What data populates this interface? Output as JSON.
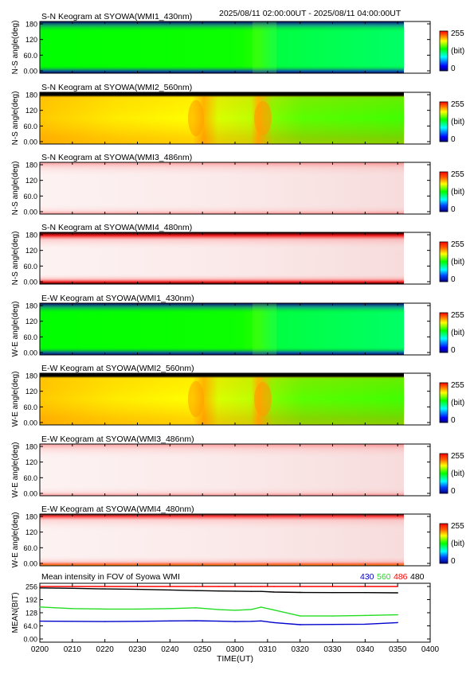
{
  "header": {
    "time_range": "2025/08/11 02:00:00UT - 2025/08/11 04:00:00UT"
  },
  "colorbar": {
    "max_label": "255",
    "min_label": "0",
    "unit_label": "(bit)"
  },
  "keograms": [
    {
      "title": "S-N Keogram at SYOWA(WMI1_430nm)",
      "ylabel": "N-S angle(deg)",
      "colormap": "rainbow",
      "yticks": [
        "180",
        "120",
        "60.0",
        "0.00"
      ]
    },
    {
      "title": "S-N Keogram at SYOWA(WMI2_560nm)",
      "ylabel": "N-S angle(deg)",
      "colormap": "rainbow",
      "yticks": [
        "180",
        "120",
        "60.0",
        "0.00"
      ]
    },
    {
      "title": "S-N Keogram at SYOWA(WMI3_486nm)",
      "ylabel": "N-S angle(deg)",
      "colormap": "reds",
      "yticks": [
        "180",
        "120",
        "60.0",
        "0.00"
      ]
    },
    {
      "title": "S-N Keogram at SYOWA(WMI4_480nm)",
      "ylabel": "N-S angle(deg)",
      "colormap": "reds",
      "yticks": [
        "180",
        "120",
        "60.0",
        "0.00"
      ]
    },
    {
      "title": "E-W Keogram at SYOWA(WMI1_430nm)",
      "ylabel": "W-E angle(deg)",
      "colormap": "rainbow",
      "yticks": [
        "180",
        "120",
        "60.0",
        "0.00"
      ]
    },
    {
      "title": "E-W Keogram at SYOWA(WMI2_560nm)",
      "ylabel": "W-E angle(deg)",
      "colormap": "rainbow",
      "yticks": [
        "180",
        "120",
        "60.0",
        "0.00"
      ]
    },
    {
      "title": "E-W Keogram at SYOWA(WMI3_486nm)",
      "ylabel": "W-E angle(deg)",
      "colormap": "reds",
      "yticks": [
        "180",
        "120",
        "60.0",
        "0.00"
      ]
    },
    {
      "title": "E-W Keogram at SYOWA(WMI4_480nm)",
      "ylabel": "W-E angle(deg)",
      "colormap": "reds",
      "yticks": [
        "180",
        "120",
        "60.0",
        "0.00"
      ]
    }
  ],
  "mean_panel": {
    "title": "Mean intensity in FOV of Syowa WMI",
    "ylabel": "MEAN(BIT)",
    "yticks": [
      "256",
      "192",
      "128",
      "64.0",
      "0.00"
    ],
    "legend": [
      {
        "label": "430",
        "color": "#0000cc"
      },
      {
        "label": "560",
        "color": "#00cc00"
      },
      {
        "label": "486",
        "color": "#ff0000"
      },
      {
        "label": "480",
        "color": "#000000"
      }
    ]
  },
  "xaxis": {
    "label": "TIME(UT)",
    "ticks": [
      "0200",
      "0210",
      "0220",
      "0230",
      "0240",
      "0250",
      "0300",
      "0310",
      "0320",
      "0330",
      "0340",
      "0350",
      "0400"
    ]
  },
  "chart_data": {
    "type": "line",
    "title": "Mean intensity in FOV of Syowa WMI",
    "xlabel": "TIME(UT)",
    "ylabel": "MEAN(BIT)",
    "xlim": [
      "02:00",
      "04:00"
    ],
    "ylim": [
      0,
      256
    ],
    "x": [
      "02:00",
      "02:10",
      "02:20",
      "02:30",
      "02:40",
      "02:48",
      "02:55",
      "03:00",
      "03:05",
      "03:08",
      "03:12",
      "03:20",
      "03:30",
      "03:40",
      "03:50"
    ],
    "series": [
      {
        "name": "430",
        "color": "#0000cc",
        "values": [
          87,
          86,
          85,
          86,
          88,
          89,
          87,
          85,
          86,
          88,
          80,
          70,
          71,
          72,
          80
        ]
      },
      {
        "name": "560",
        "color": "#00cc00",
        "values": [
          156,
          148,
          146,
          146,
          148,
          152,
          143,
          140,
          144,
          155,
          141,
          112,
          112,
          115,
          118
        ]
      },
      {
        "name": "486",
        "color": "#ff0000",
        "values": [
          256,
          256,
          256,
          256,
          256,
          256,
          256,
          256,
          256,
          256,
          256,
          256,
          256,
          256,
          256
        ]
      },
      {
        "name": "480",
        "color": "#000000",
        "values": [
          249,
          247,
          244,
          242,
          239,
          236,
          234,
          233,
          232,
          232,
          229,
          227,
          226,
          226,
          225
        ]
      }
    ]
  }
}
